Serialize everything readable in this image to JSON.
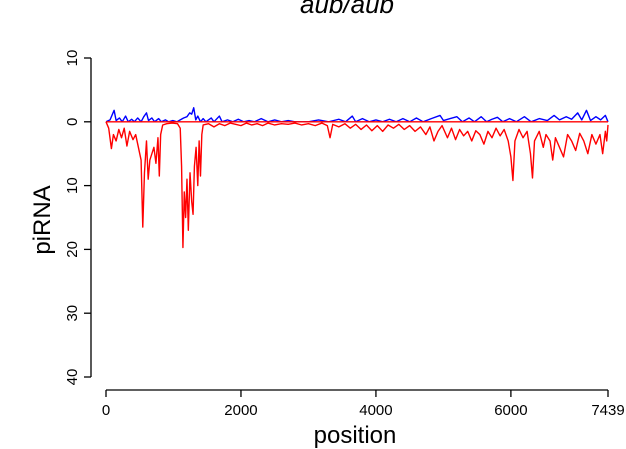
{
  "chart_data": {
    "type": "line",
    "title": "aub/aub",
    "xlabel": "position",
    "ylabel": "piRNA",
    "xlim": [
      0,
      7439
    ],
    "ylim": [
      40,
      -10
    ],
    "x_ticks": [
      0,
      2000,
      4000,
      6000,
      7439
    ],
    "x_tick_labels": [
      "0",
      "2000",
      "4000",
      "6000",
      "7439"
    ],
    "y_ticks": [
      -10,
      0,
      10,
      20,
      30,
      40
    ],
    "y_tick_labels": [
      "10",
      "0",
      "10",
      "20",
      "30",
      "40"
    ],
    "grid": false,
    "legend": "none",
    "series": [
      {
        "color": "#0000ff",
        "sense": "above",
        "points": [
          [
            0,
            0
          ],
          [
            60,
            0.3
          ],
          [
            120,
            1.8
          ],
          [
            150,
            0.2
          ],
          [
            200,
            0.6
          ],
          [
            240,
            0
          ],
          [
            290,
            0.9
          ],
          [
            330,
            0
          ],
          [
            380,
            0.4
          ],
          [
            420,
            0
          ],
          [
            470,
            0.6
          ],
          [
            520,
            0
          ],
          [
            560,
            0.8
          ],
          [
            600,
            1.4
          ],
          [
            630,
            0.2
          ],
          [
            680,
            0.6
          ],
          [
            720,
            0
          ],
          [
            780,
            0.5
          ],
          [
            820,
            0
          ],
          [
            880,
            0.3
          ],
          [
            930,
            0
          ],
          [
            990,
            0.2
          ],
          [
            1050,
            0
          ],
          [
            1100,
            0.3
          ],
          [
            1150,
            0.6
          ],
          [
            1200,
            0.8
          ],
          [
            1240,
            1.4
          ],
          [
            1270,
            1.2
          ],
          [
            1300,
            2.2
          ],
          [
            1330,
            0.3
          ],
          [
            1360,
            0.9
          ],
          [
            1400,
            0
          ],
          [
            1440,
            0.5
          ],
          [
            1480,
            0
          ],
          [
            1560,
            0.6
          ],
          [
            1600,
            0
          ],
          [
            1680,
            0.9
          ],
          [
            1720,
            0
          ],
          [
            1800,
            0.3
          ],
          [
            1880,
            0
          ],
          [
            1960,
            0.4
          ],
          [
            2040,
            0
          ],
          [
            2120,
            0.2
          ],
          [
            2200,
            0
          ],
          [
            2300,
            0.5
          ],
          [
            2400,
            0
          ],
          [
            2500,
            0.3
          ],
          [
            2600,
            0
          ],
          [
            2700,
            0.2
          ],
          [
            2800,
            0
          ],
          [
            3000,
            0
          ],
          [
            3150,
            0.3
          ],
          [
            3300,
            0
          ],
          [
            3450,
            0.4
          ],
          [
            3550,
            0
          ],
          [
            3650,
            0.9
          ],
          [
            3700,
            0
          ],
          [
            3800,
            0.5
          ],
          [
            3900,
            0
          ],
          [
            4000,
            0.3
          ],
          [
            4100,
            0
          ],
          [
            4200,
            0.4
          ],
          [
            4300,
            0
          ],
          [
            4400,
            0.5
          ],
          [
            4500,
            0
          ],
          [
            4600,
            0.6
          ],
          [
            4700,
            0
          ],
          [
            4820,
            0.5
          ],
          [
            4950,
            1.0
          ],
          [
            5000,
            0.2
          ],
          [
            5100,
            0.5
          ],
          [
            5200,
            0.8
          ],
          [
            5280,
            0
          ],
          [
            5380,
            0.6
          ],
          [
            5460,
            0
          ],
          [
            5560,
            0.8
          ],
          [
            5640,
            0
          ],
          [
            5720,
            0.4
          ],
          [
            5800,
            0.7
          ],
          [
            5880,
            0
          ],
          [
            5980,
            0.5
          ],
          [
            6080,
            0
          ],
          [
            6200,
            0.8
          ],
          [
            6300,
            0
          ],
          [
            6420,
            0.5
          ],
          [
            6540,
            0.2
          ],
          [
            6640,
            1.0
          ],
          [
            6720,
            0.3
          ],
          [
            6820,
            0.8
          ],
          [
            6900,
            0.4
          ],
          [
            6990,
            1.4
          ],
          [
            7050,
            0.3
          ],
          [
            7120,
            1.8
          ],
          [
            7180,
            0.2
          ],
          [
            7260,
            0.8
          ],
          [
            7330,
            0.3
          ],
          [
            7400,
            1.0
          ],
          [
            7439,
            0
          ]
        ]
      },
      {
        "color": "#ff0000",
        "sense": "below",
        "points": [
          [
            0,
            0
          ],
          [
            40,
            -1.0
          ],
          [
            80,
            -4.2
          ],
          [
            110,
            -2.0
          ],
          [
            150,
            -3.0
          ],
          [
            190,
            -1.2
          ],
          [
            230,
            -2.5
          ],
          [
            270,
            -1.0
          ],
          [
            310,
            -3.8
          ],
          [
            350,
            -1.5
          ],
          [
            400,
            -2.8
          ],
          [
            440,
            -2.0
          ],
          [
            480,
            -4.0
          ],
          [
            520,
            -6.0
          ],
          [
            545,
            -16.5
          ],
          [
            570,
            -8.0
          ],
          [
            600,
            -3.0
          ],
          [
            625,
            -9.0
          ],
          [
            650,
            -6.0
          ],
          [
            680,
            -5.0
          ],
          [
            710,
            -4.0
          ],
          [
            740,
            -6.5
          ],
          [
            770,
            -2.5
          ],
          [
            790,
            -8.5
          ],
          [
            810,
            -2.0
          ],
          [
            840,
            -0.5
          ],
          [
            900,
            -0.3
          ],
          [
            980,
            -0.2
          ],
          [
            1060,
            -0.3
          ],
          [
            1100,
            -1.0
          ],
          [
            1120,
            -7.0
          ],
          [
            1140,
            -19.7
          ],
          [
            1160,
            -11.0
          ],
          [
            1180,
            -15.0
          ],
          [
            1200,
            -9.0
          ],
          [
            1220,
            -17.0
          ],
          [
            1245,
            -8.0
          ],
          [
            1270,
            -12.5
          ],
          [
            1290,
            -14.5
          ],
          [
            1310,
            -7.0
          ],
          [
            1335,
            -4.0
          ],
          [
            1360,
            -10.0
          ],
          [
            1380,
            -3.0
          ],
          [
            1400,
            -8.5
          ],
          [
            1420,
            -2.0
          ],
          [
            1440,
            -0.5
          ],
          [
            1520,
            -0.3
          ],
          [
            1600,
            -0.8
          ],
          [
            1680,
            -0.3
          ],
          [
            1760,
            -0.6
          ],
          [
            1840,
            -0.2
          ],
          [
            1920,
            -0.4
          ],
          [
            2000,
            -0.6
          ],
          [
            2080,
            -0.2
          ],
          [
            2160,
            -0.5
          ],
          [
            2240,
            -0.3
          ],
          [
            2320,
            -0.6
          ],
          [
            2400,
            -0.2
          ],
          [
            2500,
            -0.5
          ],
          [
            2600,
            -0.3
          ],
          [
            2700,
            -0.4
          ],
          [
            2800,
            -0.2
          ],
          [
            2900,
            -0.5
          ],
          [
            3000,
            -0.3
          ],
          [
            3100,
            -0.6
          ],
          [
            3200,
            -0.2
          ],
          [
            3280,
            -0.6
          ],
          [
            3320,
            -2.5
          ],
          [
            3360,
            -0.4
          ],
          [
            3450,
            -0.8
          ],
          [
            3540,
            -0.3
          ],
          [
            3620,
            -1.0
          ],
          [
            3700,
            -0.4
          ],
          [
            3780,
            -1.2
          ],
          [
            3860,
            -0.5
          ],
          [
            3940,
            -1.4
          ],
          [
            4020,
            -0.6
          ],
          [
            4100,
            -1.5
          ],
          [
            4180,
            -0.5
          ],
          [
            4260,
            -1.0
          ],
          [
            4340,
            -0.4
          ],
          [
            4420,
            -1.2
          ],
          [
            4500,
            -0.6
          ],
          [
            4580,
            -1.5
          ],
          [
            4660,
            -0.8
          ],
          [
            4740,
            -2.0
          ],
          [
            4800,
            -0.8
          ],
          [
            4860,
            -3.0
          ],
          [
            4920,
            -1.5
          ],
          [
            4980,
            -0.6
          ],
          [
            5060,
            -2.5
          ],
          [
            5120,
            -1.0
          ],
          [
            5180,
            -2.8
          ],
          [
            5240,
            -1.2
          ],
          [
            5300,
            -2.2
          ],
          [
            5360,
            -1.5
          ],
          [
            5420,
            -3.0
          ],
          [
            5480,
            -1.4
          ],
          [
            5540,
            -2.0
          ],
          [
            5600,
            -3.5
          ],
          [
            5660,
            -1.5
          ],
          [
            5720,
            -2.5
          ],
          [
            5780,
            -1.0
          ],
          [
            5840,
            -2.2
          ],
          [
            5900,
            -1.2
          ],
          [
            5960,
            -3.0
          ],
          [
            6000,
            -5.5
          ],
          [
            6030,
            -9.2
          ],
          [
            6060,
            -3.0
          ],
          [
            6120,
            -1.2
          ],
          [
            6180,
            -2.5
          ],
          [
            6240,
            -1.5
          ],
          [
            6290,
            -5.0
          ],
          [
            6320,
            -8.8
          ],
          [
            6350,
            -3.0
          ],
          [
            6420,
            -1.5
          ],
          [
            6480,
            -4.0
          ],
          [
            6520,
            -2.0
          ],
          [
            6580,
            -3.0
          ],
          [
            6620,
            -6.0
          ],
          [
            6660,
            -2.5
          ],
          [
            6720,
            -4.0
          ],
          [
            6780,
            -5.5
          ],
          [
            6840,
            -2.0
          ],
          [
            6900,
            -3.0
          ],
          [
            6960,
            -4.5
          ],
          [
            7020,
            -1.8
          ],
          [
            7080,
            -3.0
          ],
          [
            7140,
            -5.0
          ],
          [
            7200,
            -2.0
          ],
          [
            7260,
            -3.5
          ],
          [
            7320,
            -2.0
          ],
          [
            7360,
            -5.0
          ],
          [
            7400,
            -1.5
          ],
          [
            7420,
            -3.0
          ],
          [
            7439,
            -0.5
          ]
        ]
      }
    ]
  }
}
